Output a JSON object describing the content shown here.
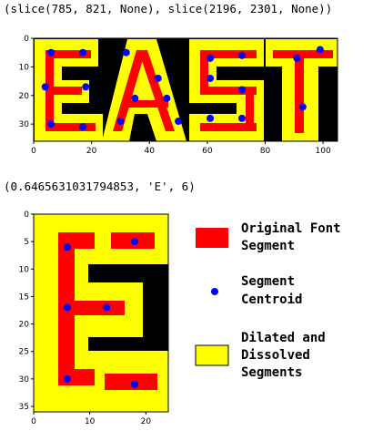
{
  "outputs": {
    "line1": "(slice(785, 821, None), slice(2196, 2301, None))",
    "line2": "(0.6465631031794853, 'E', 6)"
  },
  "chart_data": [
    {
      "type": "heatmap",
      "title": "",
      "xlim": [
        0,
        105
      ],
      "ylim": [
        0,
        36
      ],
      "xticks": [
        0,
        20,
        40,
        60,
        80,
        100
      ],
      "yticks": [
        0,
        10,
        20,
        30
      ],
      "centroids": [
        {
          "x": 6,
          "y": 5
        },
        {
          "x": 17,
          "y": 5
        },
        {
          "x": 32,
          "y": 5
        },
        {
          "x": 61,
          "y": 7
        },
        {
          "x": 72,
          "y": 6
        },
        {
          "x": 91,
          "y": 7
        },
        {
          "x": 99,
          "y": 4
        },
        {
          "x": 4,
          "y": 17
        },
        {
          "x": 18,
          "y": 17
        },
        {
          "x": 43,
          "y": 14
        },
        {
          "x": 61,
          "y": 14
        },
        {
          "x": 72,
          "y": 18
        },
        {
          "x": 35,
          "y": 21
        },
        {
          "x": 46,
          "y": 21
        },
        {
          "x": 93,
          "y": 24
        },
        {
          "x": 6,
          "y": 30
        },
        {
          "x": 17,
          "y": 31
        },
        {
          "x": 30,
          "y": 29
        },
        {
          "x": 50,
          "y": 29
        },
        {
          "x": 61,
          "y": 28
        },
        {
          "x": 72,
          "y": 28
        }
      ]
    },
    {
      "type": "heatmap",
      "title": "",
      "xlim": [
        0,
        24
      ],
      "ylim": [
        0,
        36
      ],
      "xticks": [
        0,
        10,
        20
      ],
      "yticks": [
        0,
        5,
        10,
        15,
        20,
        25,
        30,
        35
      ],
      "centroids": [
        {
          "x": 6,
          "y": 6
        },
        {
          "x": 18,
          "y": 5
        },
        {
          "x": 6,
          "y": 17
        },
        {
          "x": 13,
          "y": 17
        },
        {
          "x": 6,
          "y": 30
        },
        {
          "x": 18,
          "y": 31
        }
      ]
    }
  ],
  "legend": {
    "items": [
      {
        "label1": "Original Font",
        "label2": "Segment",
        "color": "#ff0000"
      },
      {
        "label1": "Segment",
        "label2": "Centroid",
        "color": "#0000ff"
      },
      {
        "label1": "Dilated and",
        "label2": "Dissolved",
        "label3": "Segments",
        "color": "#ffff00"
      }
    ]
  },
  "colors": {
    "background": "#000000",
    "dilated": "#ffff00",
    "segment": "#ff0000",
    "centroid": "#0000ff"
  }
}
